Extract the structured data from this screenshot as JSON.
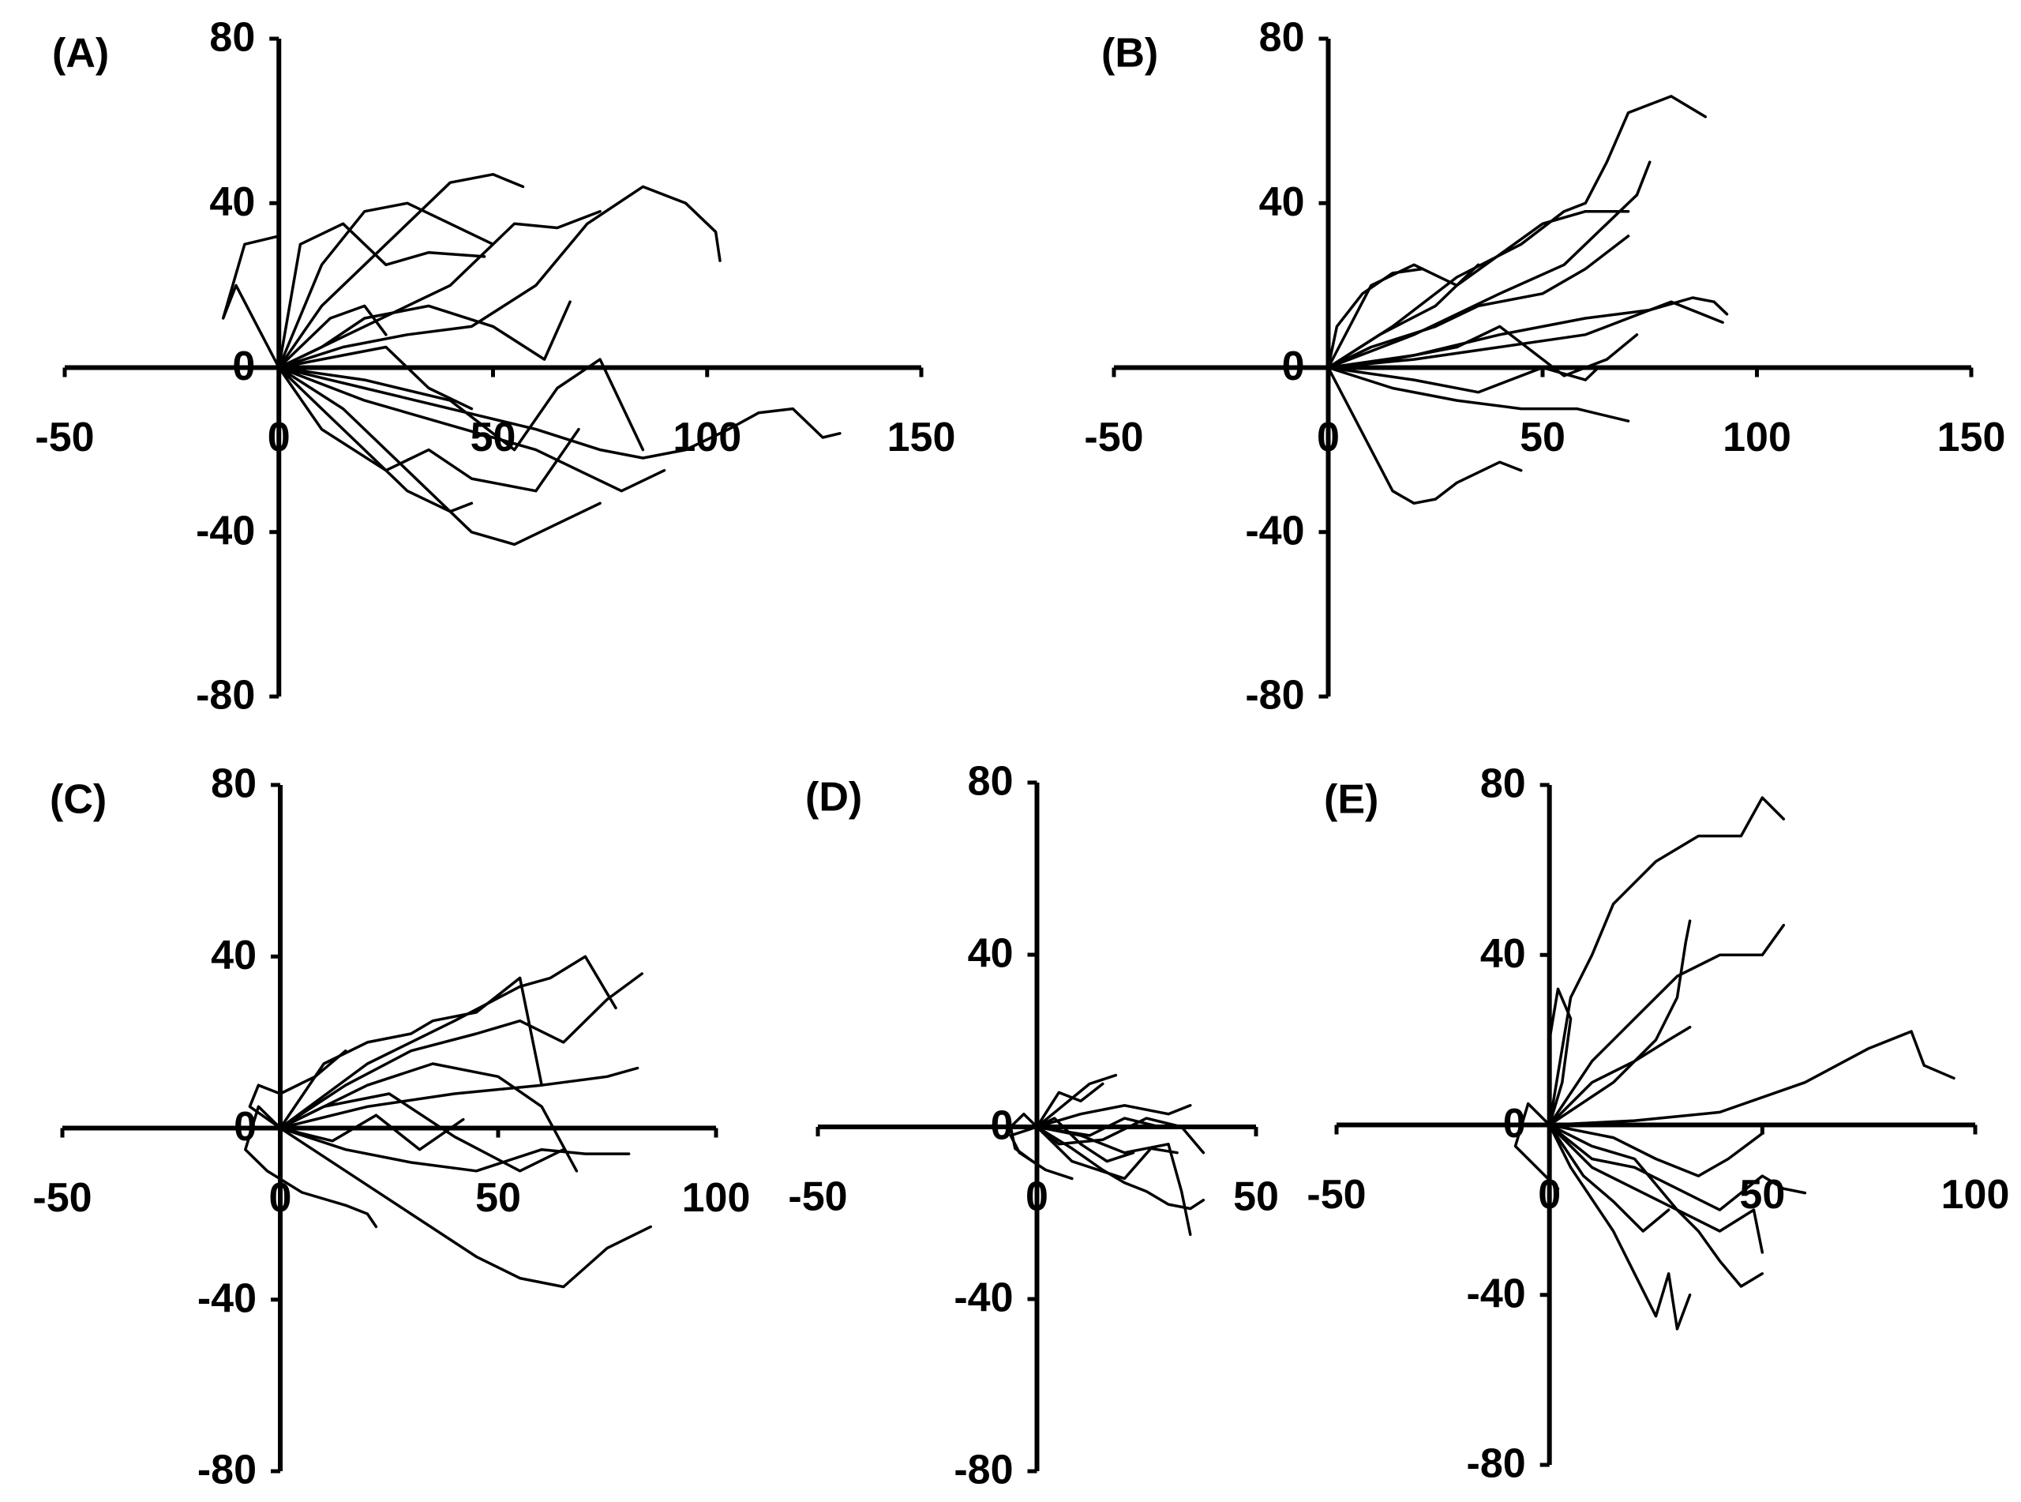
{
  "chart_data": [
    {
      "type": "line",
      "title": "(A)",
      "color": "#000000",
      "xlim": [
        -50,
        150
      ],
      "xticks": [
        -50,
        0,
        50,
        100,
        150
      ],
      "ylim": [
        -80,
        80
      ],
      "yticks": [
        -80,
        -40,
        0,
        40,
        80
      ],
      "series": [
        {
          "x": [
            0,
            10,
            20,
            30,
            40,
            50,
            57
          ],
          "values": [
            0,
            15,
            25,
            35,
            45,
            47,
            44
          ]
        },
        {
          "x": [
            0,
            15,
            30,
            45,
            60,
            72,
            85,
            95,
            102,
            103
          ],
          "values": [
            0,
            5,
            8,
            10,
            20,
            35,
            44,
            40,
            33,
            26
          ]
        },
        {
          "x": [
            0,
            20,
            40,
            55,
            65,
            75
          ],
          "values": [
            0,
            10,
            20,
            35,
            34,
            38
          ]
        },
        {
          "x": [
            0,
            -5,
            -10,
            -13,
            -8,
            0
          ],
          "values": [
            0,
            10,
            20,
            12,
            30,
            32
          ]
        },
        {
          "x": [
            0,
            10,
            20,
            30,
            40,
            45
          ],
          "values": [
            0,
            -10,
            -20,
            -30,
            -35,
            -33
          ]
        },
        {
          "x": [
            0,
            15,
            30,
            45,
            55,
            65,
            75
          ],
          "values": [
            0,
            -10,
            -25,
            -40,
            -43,
            -38,
            -33
          ]
        },
        {
          "x": [
            0,
            20,
            40,
            60,
            75,
            85,
            95,
            105,
            112,
            120,
            127,
            131
          ],
          "values": [
            0,
            -5,
            -10,
            -15,
            -20,
            -22,
            -20,
            -15,
            -11,
            -10,
            -17,
            -16
          ]
        },
        {
          "x": [
            0,
            20,
            40,
            60,
            70,
            80,
            90
          ],
          "values": [
            0,
            -8,
            -14,
            -20,
            -25,
            -30,
            -25
          ]
        },
        {
          "x": [
            0,
            10,
            20,
            30,
            40,
            50
          ],
          "values": [
            0,
            25,
            38,
            40,
            35,
            30
          ]
        },
        {
          "x": [
            0,
            5,
            15,
            25,
            35,
            48
          ],
          "values": [
            0,
            30,
            35,
            25,
            28,
            27
          ]
        },
        {
          "x": [
            0,
            20,
            40,
            55,
            65,
            75,
            85
          ],
          "values": [
            0,
            -3,
            -8,
            -20,
            -5,
            2,
            -20
          ]
        },
        {
          "x": [
            0,
            10,
            25,
            35,
            45,
            60,
            70
          ],
          "values": [
            0,
            -15,
            -25,
            -20,
            -27,
            -30,
            -15
          ]
        },
        {
          "x": [
            0,
            5,
            12,
            20,
            25
          ],
          "values": [
            0,
            5,
            12,
            15,
            8
          ]
        },
        {
          "x": [
            0,
            15,
            25,
            35,
            45
          ],
          "values": [
            0,
            3,
            5,
            -5,
            -10
          ]
        },
        {
          "x": [
            0,
            10,
            20,
            35,
            50,
            62,
            68
          ],
          "values": [
            0,
            5,
            12,
            15,
            10,
            2,
            16
          ]
        }
      ]
    },
    {
      "type": "line",
      "title": "(B)",
      "color": "#000000",
      "xlim": [
        -50,
        150
      ],
      "xticks": [
        -50,
        0,
        50,
        100,
        150
      ],
      "ylim": [
        -80,
        80
      ],
      "yticks": [
        -80,
        -40,
        0,
        40,
        80
      ],
      "series": [
        {
          "x": [
            0,
            15,
            30,
            45,
            55,
            60,
            65,
            70,
            75,
            80,
            88
          ],
          "values": [
            0,
            10,
            22,
            30,
            38,
            40,
            50,
            62,
            64,
            66,
            61
          ]
        },
        {
          "x": [
            0,
            20,
            40,
            55,
            65,
            72,
            75
          ],
          "values": [
            0,
            8,
            18,
            25,
            35,
            42,
            50
          ]
        },
        {
          "x": [
            0,
            20,
            40,
            60,
            75,
            85,
            90,
            93
          ],
          "values": [
            0,
            3,
            8,
            12,
            14,
            17,
            16,
            13
          ]
        },
        {
          "x": [
            0,
            5,
            10,
            15,
            20,
            25,
            30,
            40,
            45
          ],
          "values": [
            0,
            -10,
            -20,
            -30,
            -33,
            -32,
            -28,
            -23,
            -25
          ]
        },
        {
          "x": [
            0,
            10,
            20,
            30,
            50,
            60,
            70
          ],
          "values": [
            0,
            20,
            25,
            20,
            35,
            38,
            38
          ]
        },
        {
          "x": [
            0,
            20,
            40,
            60,
            70,
            80,
            92
          ],
          "values": [
            0,
            2,
            5,
            8,
            12,
            16,
            11
          ]
        },
        {
          "x": [
            0,
            15,
            30,
            45,
            58,
            70
          ],
          "values": [
            0,
            -5,
            -8,
            -10,
            -10,
            -13
          ]
        },
        {
          "x": [
            0,
            2,
            8,
            15,
            22
          ],
          "values": [
            0,
            10,
            18,
            23,
            24
          ]
        },
        {
          "x": [
            0,
            10,
            25,
            35,
            50,
            60,
            70
          ],
          "values": [
            0,
            5,
            10,
            15,
            18,
            24,
            32
          ]
        },
        {
          "x": [
            0,
            15,
            30,
            40,
            55,
            65,
            72
          ],
          "values": [
            0,
            2,
            5,
            10,
            -2,
            2,
            8
          ]
        },
        {
          "x": [
            0,
            12,
            25,
            35
          ],
          "values": [
            0,
            8,
            15,
            25
          ]
        },
        {
          "x": [
            0,
            20,
            35,
            50,
            60,
            63
          ],
          "values": [
            0,
            -3,
            -6,
            0,
            -3,
            0
          ]
        }
      ]
    },
    {
      "type": "line",
      "title": "(C)",
      "color": "#000000",
      "xlim": [
        -50,
        100
      ],
      "xticks": [
        -50,
        0,
        50,
        100
      ],
      "ylim": [
        -80,
        80
      ],
      "yticks": [
        -80,
        -40,
        0,
        40,
        80
      ],
      "series": [
        {
          "x": [
            0,
            15,
            30,
            45,
            55,
            65,
            75,
            85
          ],
          "values": [
            0,
            -10,
            -20,
            -30,
            -35,
            -37,
            -28,
            -23
          ]
        },
        {
          "x": [
            0,
            15,
            30,
            45,
            55,
            65,
            75,
            83
          ],
          "values": [
            0,
            10,
            18,
            22,
            25,
            20,
            30,
            36
          ]
        },
        {
          "x": [
            0,
            20,
            40,
            55,
            62,
            70,
            77
          ],
          "values": [
            0,
            15,
            25,
            33,
            35,
            40,
            28
          ]
        },
        {
          "x": [
            0,
            20,
            40,
            60,
            75,
            82
          ],
          "values": [
            0,
            5,
            8,
            10,
            12,
            14
          ]
        },
        {
          "x": [
            0,
            15,
            30,
            45,
            60,
            70,
            80
          ],
          "values": [
            0,
            -5,
            -8,
            -10,
            -5,
            -6,
            -6
          ]
        },
        {
          "x": [
            0,
            10,
            20,
            30,
            35,
            45,
            55,
            60
          ],
          "values": [
            0,
            15,
            20,
            22,
            25,
            27,
            35,
            10
          ]
        },
        {
          "x": [
            0,
            -5,
            -8,
            -3,
            5,
            15,
            20,
            22
          ],
          "values": [
            0,
            5,
            -5,
            -10,
            -15,
            -18,
            -20,
            -23
          ]
        },
        {
          "x": [
            0,
            10,
            25,
            40,
            55,
            65
          ],
          "values": [
            0,
            5,
            8,
            -2,
            -10,
            -5
          ]
        },
        {
          "x": [
            0,
            -7,
            -5,
            0,
            8,
            15
          ],
          "values": [
            0,
            5,
            10,
            8,
            12,
            18
          ]
        },
        {
          "x": [
            0,
            20,
            35,
            50,
            60,
            68
          ],
          "values": [
            0,
            10,
            15,
            12,
            5,
            -10
          ]
        },
        {
          "x": [
            0,
            12,
            22,
            32,
            42
          ],
          "values": [
            0,
            -3,
            3,
            -5,
            2
          ]
        }
      ]
    },
    {
      "type": "line",
      "title": "(D)",
      "color": "#000000",
      "xlim": [
        -50,
        50
      ],
      "xticks": [
        -50,
        0,
        50
      ],
      "ylim": [
        -80,
        80
      ],
      "yticks": [
        -80,
        -40,
        0,
        40,
        80
      ],
      "series": [
        {
          "x": [
            0,
            8,
            15,
            20,
            25,
            30,
            35,
            38
          ],
          "values": [
            0,
            -5,
            -10,
            -13,
            -15,
            -18,
            -19,
            -17
          ]
        },
        {
          "x": [
            0,
            10,
            20,
            30,
            35
          ],
          "values": [
            0,
            3,
            5,
            3,
            5
          ]
        },
        {
          "x": [
            0,
            5,
            15,
            25,
            33,
            38
          ],
          "values": [
            0,
            -4,
            -3,
            2,
            0,
            -6
          ]
        },
        {
          "x": [
            0,
            6,
            12,
            18
          ],
          "values": [
            0,
            5,
            10,
            12
          ]
        },
        {
          "x": [
            0,
            10,
            20,
            30,
            33,
            35
          ],
          "values": [
            0,
            -2,
            -6,
            -4,
            -15,
            -25
          ]
        },
        {
          "x": [
            0,
            -3,
            -6,
            -5,
            -1
          ],
          "values": [
            0,
            3,
            0,
            -5,
            -8
          ]
        },
        {
          "x": [
            0,
            8,
            14,
            20,
            26,
            32
          ],
          "values": [
            0,
            -8,
            -10,
            -12,
            -5,
            -6
          ]
        },
        {
          "x": [
            0,
            4,
            10,
            16,
            22
          ],
          "values": [
            0,
            2,
            -4,
            -8,
            -6
          ]
        },
        {
          "x": [
            0,
            5,
            10,
            15
          ],
          "values": [
            0,
            8,
            6,
            10
          ]
        },
        {
          "x": [
            0,
            -6,
            -4,
            2,
            8
          ],
          "values": [
            0,
            -2,
            -6,
            -10,
            -12
          ]
        },
        {
          "x": [
            0,
            12,
            20,
            28
          ],
          "values": [
            0,
            -2,
            2,
            0
          ]
        }
      ]
    },
    {
      "type": "line",
      "title": "(E)",
      "color": "#000000",
      "xlim": [
        -50,
        100
      ],
      "xticks": [
        -50,
        0,
        50,
        100
      ],
      "ylim": [
        -80,
        80
      ],
      "yticks": [
        -80,
        -40,
        0,
        40,
        80
      ],
      "series": [
        {
          "x": [
            0,
            5,
            10,
            15,
            25,
            35,
            45,
            50,
            55
          ],
          "values": [
            0,
            30,
            40,
            52,
            62,
            68,
            68,
            77,
            72
          ]
        },
        {
          "x": [
            0,
            10,
            20,
            30,
            40,
            50,
            55
          ],
          "values": [
            0,
            15,
            25,
            35,
            40,
            40,
            47
          ]
        },
        {
          "x": [
            0,
            20,
            40,
            60,
            75,
            85,
            88,
            95
          ],
          "values": [
            0,
            1,
            3,
            10,
            18,
            22,
            14,
            11
          ]
        },
        {
          "x": [
            0,
            5,
            15,
            20,
            25,
            28,
            30,
            33
          ],
          "values": [
            0,
            -10,
            -25,
            -35,
            -45,
            -35,
            -48,
            -40
          ]
        },
        {
          "x": [
            0,
            10,
            20,
            30,
            35,
            40,
            45,
            50
          ],
          "values": [
            0,
            -10,
            -15,
            -20,
            -25,
            -32,
            -38,
            -35
          ]
        },
        {
          "x": [
            0,
            10,
            20,
            30,
            40,
            50,
            55,
            60
          ],
          "values": [
            0,
            -8,
            -10,
            -15,
            -20,
            -12,
            -15,
            -16
          ]
        },
        {
          "x": [
            0,
            3,
            5,
            2,
            0
          ],
          "values": [
            0,
            10,
            25,
            32,
            20
          ]
        },
        {
          "x": [
            0,
            10,
            20,
            28,
            33
          ],
          "values": [
            0,
            10,
            15,
            20,
            23
          ]
        },
        {
          "x": [
            0,
            15,
            25,
            30,
            32,
            33
          ],
          "values": [
            0,
            10,
            20,
            30,
            43,
            48
          ]
        },
        {
          "x": [
            0,
            10,
            20,
            30,
            40,
            48,
            50
          ],
          "values": [
            0,
            -5,
            -8,
            -20,
            -25,
            -20,
            -30
          ]
        },
        {
          "x": [
            0,
            -5,
            -8,
            -3,
            2
          ],
          "values": [
            0,
            5,
            -5,
            -10,
            -15
          ]
        },
        {
          "x": [
            0,
            15,
            25,
            35,
            42,
            50
          ],
          "values": [
            0,
            -3,
            -8,
            -12,
            -8,
            -2
          ]
        },
        {
          "x": [
            0,
            8,
            15,
            22,
            28
          ],
          "values": [
            0,
            -12,
            -18,
            -25,
            -20
          ]
        }
      ]
    }
  ]
}
